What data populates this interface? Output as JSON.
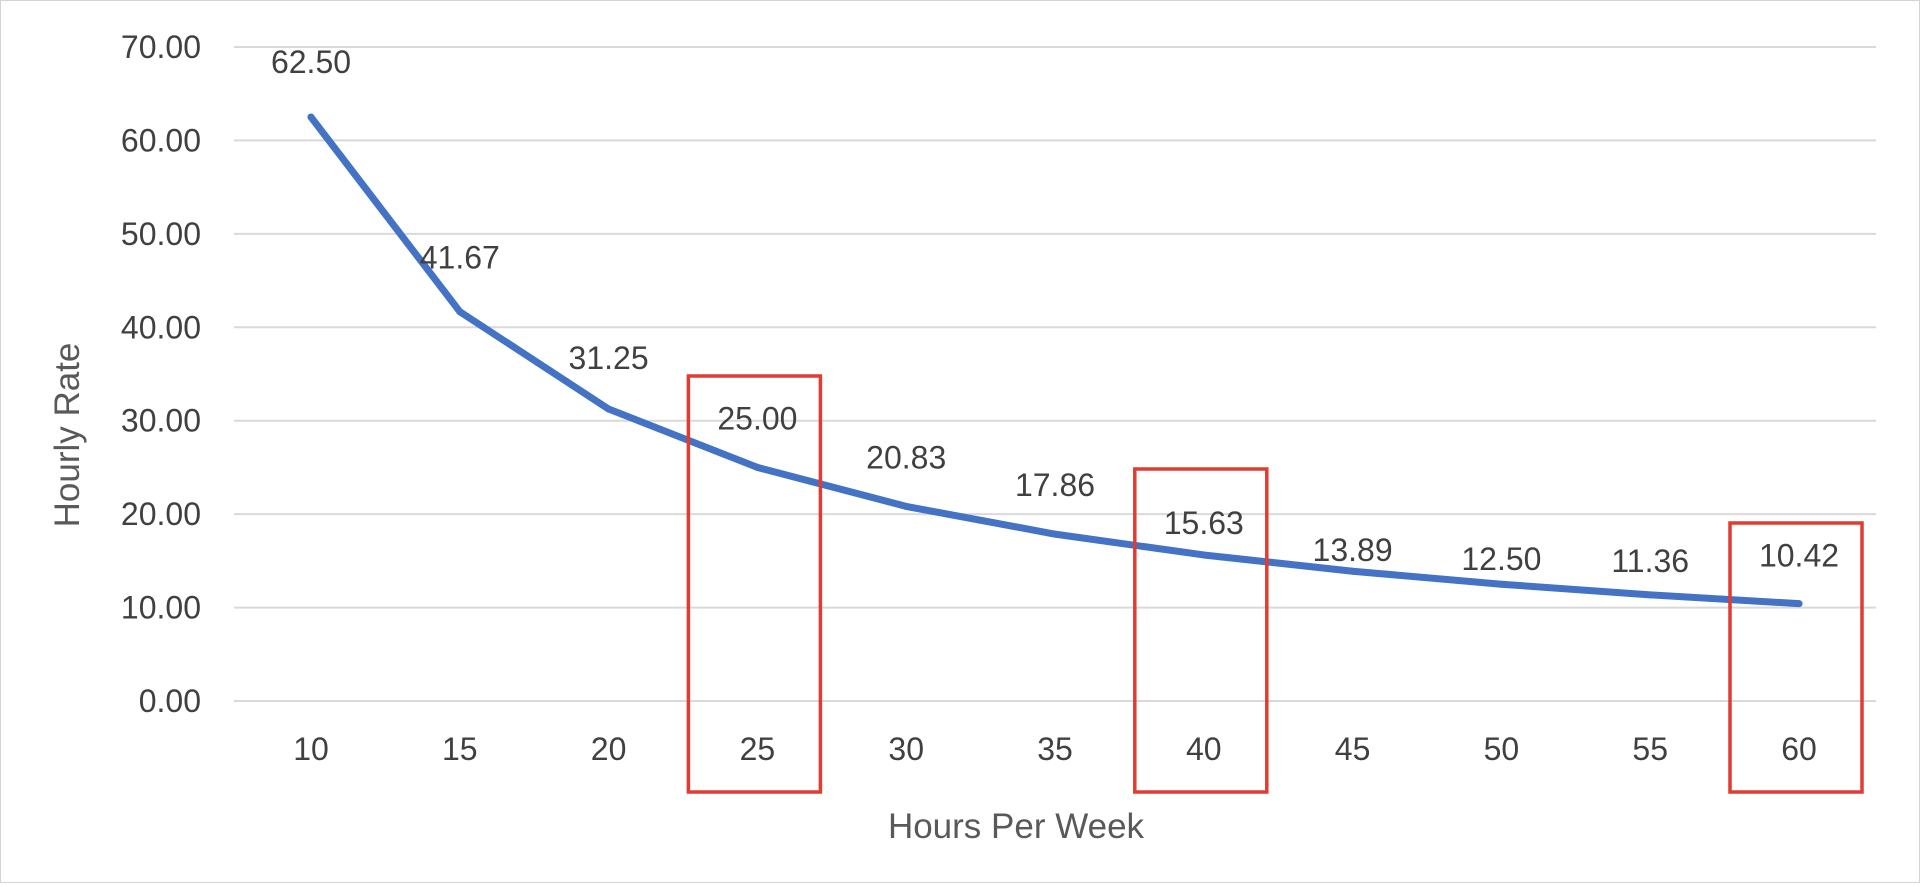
{
  "chart_data": {
    "type": "line",
    "xlabel": "Hours Per Week",
    "ylabel": "Hourly Rate",
    "categories": [
      "10",
      "15",
      "20",
      "25",
      "30",
      "35",
      "40",
      "45",
      "50",
      "55",
      "60"
    ],
    "series": [
      {
        "values": [
          62.5,
          41.67,
          31.25,
          25.0,
          20.83,
          17.86,
          15.63,
          13.89,
          12.5,
          11.36,
          10.42
        ],
        "color": "#4472C4"
      }
    ],
    "data_labels": [
      "62.50",
      "41.67",
      "31.25",
      "25.00",
      "20.83",
      "17.86",
      "15.63",
      "13.89",
      "12.50",
      "11.36",
      "10.42"
    ],
    "yticks": [
      "0.00",
      "10.00",
      "20.00",
      "30.00",
      "40.00",
      "50.00",
      "60.00",
      "70.00"
    ],
    "ylim": [
      0,
      70
    ],
    "grid": true,
    "legend": "none",
    "highlighted_categories": [
      "25",
      "40",
      "60"
    ],
    "highlight_color": "#E03C31",
    "gridline_color": "#D9D9D9"
  }
}
